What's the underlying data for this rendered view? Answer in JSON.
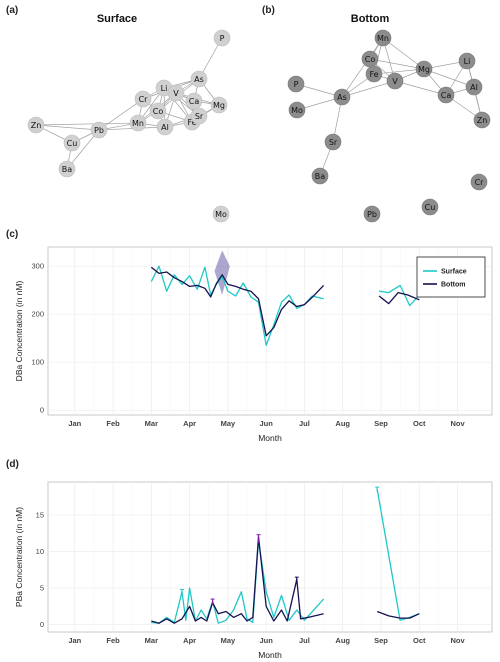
{
  "panels": {
    "a": {
      "label": "(a)",
      "title": "Surface"
    },
    "b": {
      "label": "(b)",
      "title": "Bottom"
    },
    "c": {
      "label": "(c)"
    },
    "d": {
      "label": "(d)"
    }
  },
  "colors": {
    "surface": "#1fc8c8",
    "bottom": "#15124f",
    "node_a": "#d0d0d0",
    "node_b": "#8c8c8c",
    "edge": "#a0a0a0",
    "band": "#6a5fa8",
    "error_bar": "#7b1fa2"
  },
  "network_surface": {
    "nodes": [
      "P",
      "As",
      "Li",
      "V",
      "Cr",
      "Ca",
      "Mg",
      "Co",
      "Fe",
      "Sr",
      "Mn",
      "Al",
      "Zn",
      "Pb",
      "Cu",
      "Ba",
      "Mo"
    ],
    "edges": [
      [
        "P",
        "As"
      ],
      [
        "As",
        "Li"
      ],
      [
        "As",
        "V"
      ],
      [
        "As",
        "Ca"
      ],
      [
        "As",
        "Mg"
      ],
      [
        "As",
        "Co"
      ],
      [
        "As",
        "Cr"
      ],
      [
        "Li",
        "V"
      ],
      [
        "Li",
        "Cr"
      ],
      [
        "Li",
        "Ca"
      ],
      [
        "Li",
        "Co"
      ],
      [
        "Li",
        "Fe"
      ],
      [
        "Li",
        "Mn"
      ],
      [
        "Li",
        "Al"
      ],
      [
        "Li",
        "Sr"
      ],
      [
        "V",
        "Ca"
      ],
      [
        "V",
        "Mg"
      ],
      [
        "V",
        "Co"
      ],
      [
        "V",
        "Fe"
      ],
      [
        "V",
        "Sr"
      ],
      [
        "V",
        "Al"
      ],
      [
        "V",
        "Mn"
      ],
      [
        "Cr",
        "Co"
      ],
      [
        "Cr",
        "Mn"
      ],
      [
        "Cr",
        "Pb"
      ],
      [
        "Ca",
        "Mg"
      ],
      [
        "Ca",
        "Fe"
      ],
      [
        "Ca",
        "Sr"
      ],
      [
        "Mg",
        "Sr"
      ],
      [
        "Mg",
        "Fe"
      ],
      [
        "Co",
        "Fe"
      ],
      [
        "Co",
        "Mn"
      ],
      [
        "Co",
        "Al"
      ],
      [
        "Fe",
        "Sr"
      ],
      [
        "Fe",
        "Al"
      ],
      [
        "Mn",
        "Al"
      ],
      [
        "Mn",
        "Pb"
      ],
      [
        "Al",
        "Sr"
      ],
      [
        "Al",
        "Pb"
      ],
      [
        "Zn",
        "Pb"
      ],
      [
        "Zn",
        "Mn"
      ],
      [
        "Pb",
        "Cu"
      ],
      [
        "Pb",
        "Ba"
      ],
      [
        "Cu",
        "Zn"
      ],
      [
        "Cu",
        "Ba"
      ]
    ]
  },
  "network_bottom": {
    "nodes": [
      "Mn",
      "Co",
      "Fe",
      "V",
      "Mg",
      "Li",
      "P",
      "As",
      "Ca",
      "Al",
      "Mo",
      "Zn",
      "Sr",
      "Ba",
      "Cr",
      "Pb",
      "Cu"
    ],
    "edges": [
      [
        "Mn",
        "Co"
      ],
      [
        "Mn",
        "Fe"
      ],
      [
        "Mn",
        "V"
      ],
      [
        "Mn",
        "Mg"
      ],
      [
        "Mn",
        "As"
      ],
      [
        "Co",
        "Fe"
      ],
      [
        "Co",
        "V"
      ],
      [
        "Co",
        "Mg"
      ],
      [
        "Fe",
        "V"
      ],
      [
        "Fe",
        "Mg"
      ],
      [
        "Fe",
        "As"
      ],
      [
        "V",
        "Mg"
      ],
      [
        "V",
        "As"
      ],
      [
        "Mg",
        "Li"
      ],
      [
        "Mg",
        "Ca"
      ],
      [
        "Mg",
        "Al"
      ],
      [
        "Li",
        "Al"
      ],
      [
        "Li",
        "Ca"
      ],
      [
        "Li",
        "Zn"
      ],
      [
        "Ca",
        "Al"
      ],
      [
        "Ca",
        "Zn"
      ],
      [
        "Al",
        "Zn"
      ],
      [
        "P",
        "As"
      ],
      [
        "As",
        "Mo"
      ],
      [
        "As",
        "Sr"
      ],
      [
        "Sr",
        "Ba"
      ],
      [
        "V",
        "Ca"
      ]
    ]
  },
  "chart_data": [
    {
      "type": "line",
      "ylabel": "DBa Concentration (in nM)",
      "xlabel": "Month",
      "categories": [
        "Jan",
        "Feb",
        "Mar",
        "Apr",
        "May",
        "Jun",
        "Jul",
        "Aug",
        "Sep",
        "Oct",
        "Nov"
      ],
      "yticks": [
        "0",
        "100",
        "200",
        "300"
      ],
      "ylim": [
        -10,
        340
      ],
      "xlim": [
        0.3,
        11.9
      ],
      "legend": {
        "position": "right",
        "items": [
          "Surface",
          "Bottom"
        ]
      },
      "series": [
        {
          "name": "Surface",
          "segments": [
            [
              [
                3.0,
                268
              ],
              [
                3.2,
                300
              ],
              [
                3.4,
                248
              ],
              [
                3.6,
                282
              ],
              [
                3.8,
                262
              ],
              [
                4.0,
                280
              ],
              [
                4.2,
                252
              ],
              [
                4.4,
                298
              ],
              [
                4.55,
                240
              ],
              [
                4.7,
                262
              ],
              [
                4.85,
                278
              ],
              [
                5.0,
                248
              ],
              [
                5.2,
                238
              ],
              [
                5.4,
                265
              ],
              [
                5.6,
                236
              ],
              [
                5.8,
                225
              ],
              [
                6.0,
                135
              ],
              [
                6.2,
                178
              ],
              [
                6.4,
                225
              ],
              [
                6.6,
                240
              ],
              [
                6.8,
                212
              ],
              [
                7.0,
                220
              ],
              [
                7.2,
                238
              ],
              [
                7.5,
                232
              ]
            ],
            [
              [
                8.95,
                248
              ],
              [
                9.2,
                245
              ],
              [
                9.5,
                260
              ],
              [
                9.75,
                218
              ],
              [
                10.0,
                240
              ]
            ]
          ]
        },
        {
          "name": "Bottom",
          "segments": [
            [
              [
                3.0,
                298
              ],
              [
                3.2,
                285
              ],
              [
                3.4,
                288
              ],
              [
                3.6,
                276
              ],
              [
                3.8,
                268
              ],
              [
                4.0,
                258
              ],
              [
                4.2,
                260
              ],
              [
                4.4,
                254
              ],
              [
                4.55,
                236
              ],
              [
                4.7,
                264
              ],
              [
                4.85,
                282
              ],
              [
                5.0,
                262
              ],
              [
                5.2,
                258
              ],
              [
                5.4,
                252
              ],
              [
                5.6,
                248
              ],
              [
                5.8,
                232
              ],
              [
                6.0,
                155
              ],
              [
                6.2,
                172
              ],
              [
                6.4,
                210
              ],
              [
                6.6,
                228
              ],
              [
                6.8,
                216
              ],
              [
                7.0,
                220
              ],
              [
                7.2,
                235
              ],
              [
                7.5,
                260
              ]
            ],
            [
              [
                8.95,
                238
              ],
              [
                9.2,
                222
              ],
              [
                9.45,
                245
              ],
              [
                9.7,
                240
              ],
              [
                10.0,
                230
              ]
            ]
          ]
        }
      ],
      "band": [
        [
          4.65,
          290
        ],
        [
          4.85,
          333
        ],
        [
          5.05,
          300
        ]
      ]
    },
    {
      "type": "line",
      "ylabel": "PBa Concentration (in nM)",
      "xlabel": "Month",
      "categories": [
        "Jan",
        "Feb",
        "Mar",
        "Apr",
        "May",
        "Jun",
        "Jul",
        "Aug",
        "Sep",
        "Oct",
        "Nov"
      ],
      "yticks": [
        "0",
        "5",
        "10",
        "15"
      ],
      "ylim": [
        -1,
        19.5
      ],
      "xlim": [
        0.3,
        11.9
      ],
      "series": [
        {
          "name": "Surface",
          "segments": [
            [
              [
                3.0,
                0.3
              ],
              [
                3.2,
                0.2
              ],
              [
                3.4,
                1.0
              ],
              [
                3.6,
                0.3
              ],
              [
                3.8,
                4.5
              ],
              [
                3.9,
                0.6
              ],
              [
                4.0,
                5.0
              ],
              [
                4.15,
                0.5
              ],
              [
                4.3,
                2.0
              ],
              [
                4.45,
                0.8
              ],
              [
                4.6,
                3.2
              ],
              [
                4.75,
                0.2
              ],
              [
                4.95,
                0.6
              ],
              [
                5.15,
                2.0
              ],
              [
                5.35,
                4.5
              ],
              [
                5.5,
                0.8
              ],
              [
                5.65,
                0.3
              ],
              [
                5.8,
                11.5
              ],
              [
                6.0,
                4.5
              ],
              [
                6.2,
                1.0
              ],
              [
                6.4,
                4.0
              ],
              [
                6.6,
                0.6
              ],
              [
                6.8,
                2.0
              ],
              [
                7.0,
                0.6
              ],
              [
                7.5,
                3.5
              ]
            ],
            [
              [
                8.9,
                18.5
              ],
              [
                9.5,
                0.6
              ],
              [
                9.75,
                1.0
              ],
              [
                10.0,
                1.5
              ]
            ]
          ]
        },
        {
          "name": "Bottom",
          "segments": [
            [
              [
                3.0,
                0.5
              ],
              [
                3.2,
                0.2
              ],
              [
                3.4,
                0.8
              ],
              [
                3.6,
                0.2
              ],
              [
                3.8,
                0.8
              ],
              [
                4.0,
                2.5
              ],
              [
                4.15,
                0.5
              ],
              [
                4.3,
                1.0
              ],
              [
                4.45,
                0.5
              ],
              [
                4.6,
                3.0
              ],
              [
                4.75,
                1.5
              ],
              [
                4.95,
                1.8
              ],
              [
                5.15,
                1.0
              ],
              [
                5.35,
                1.5
              ],
              [
                5.5,
                0.5
              ],
              [
                5.65,
                1.0
              ],
              [
                5.8,
                12.0
              ],
              [
                6.0,
                2.5
              ],
              [
                6.2,
                0.5
              ],
              [
                6.4,
                2.0
              ],
              [
                6.55,
                0.5
              ],
              [
                6.8,
                6.2
              ],
              [
                6.9,
                0.8
              ],
              [
                7.1,
                1.0
              ],
              [
                7.5,
                1.5
              ]
            ],
            [
              [
                8.9,
                1.8
              ],
              [
                9.2,
                1.2
              ],
              [
                9.5,
                0.9
              ],
              [
                9.75,
                0.9
              ],
              [
                10.0,
                1.5
              ]
            ]
          ]
        }
      ]
    }
  ]
}
